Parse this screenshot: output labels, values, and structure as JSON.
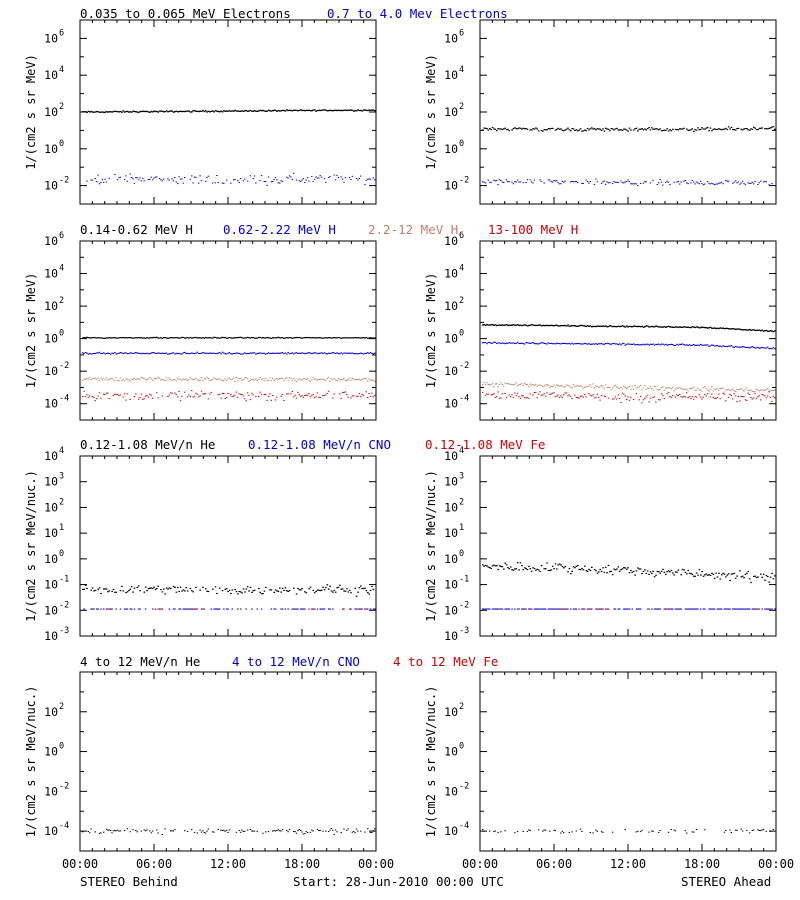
{
  "header_rows": [
    {
      "labels": [
        {
          "text": "0.035 to 0.065 MeV Electrons",
          "color": "#000000"
        },
        {
          "text": "0.7 to 4.0 Mev Electrons",
          "color": "#0000cc"
        }
      ]
    },
    {
      "labels": [
        {
          "text": "0.14-0.62 MeV H",
          "color": "#000000"
        },
        {
          "text": "0.62-2.22 MeV H",
          "color": "#0000cc"
        },
        {
          "text": "2.2-12 MeV H",
          "color": "#c0806a"
        },
        {
          "text": "13-100 MeV H",
          "color": "#cc0000"
        }
      ]
    },
    {
      "labels": [
        {
          "text": "0.12-1.08 MeV/n He",
          "color": "#000000"
        },
        {
          "text": "0.12-1.08 MeV/n CNO",
          "color": "#0000cc"
        },
        {
          "text": "0.12-1.08 MeV Fe",
          "color": "#cc0000"
        }
      ]
    },
    {
      "labels": [
        {
          "text": "4 to 12 MeV/n He",
          "color": "#000000"
        },
        {
          "text": "4 to 12 MeV/n CNO",
          "color": "#0000cc"
        },
        {
          "text": "4 to 12 MeV Fe",
          "color": "#cc0000"
        }
      ]
    }
  ],
  "footer": {
    "left": "STEREO Behind",
    "center": "Start: 28-Jun-2010 00:00 UTC",
    "right": "STEREO Ahead"
  },
  "x_tick_labels": [
    "00:00",
    "06:00",
    "12:00",
    "18:00",
    "00:00"
  ],
  "chart_data": [
    {
      "type": "scatter",
      "panel": "electrons-behind",
      "ylabel": "1/(cm2 s sr MeV)",
      "yscale": "log",
      "ylim_log10": [
        -3,
        7
      ],
      "x": [
        "00:00",
        "06:00",
        "12:00",
        "18:00",
        "24:00"
      ],
      "ytick_exponents": [
        -2,
        0,
        2,
        4,
        6
      ],
      "series": [
        {
          "name": "0.035 to 0.065 MeV Electrons",
          "color": "#000000",
          "log10_values": [
            2.0,
            2.02,
            2.05,
            2.08,
            2.1
          ],
          "scatter": 0.03,
          "density": 1.0,
          "size": 1.3
        },
        {
          "name": "0.7 to 4.0 Mev Electrons",
          "color": "#0000cc",
          "log10_values": [
            -1.65,
            -1.65,
            -1.65,
            -1.65,
            -1.65
          ],
          "scatter": 0.22,
          "density": 0.75,
          "size": 1.0
        }
      ]
    },
    {
      "type": "scatter",
      "panel": "electrons-ahead",
      "ylabel": "1/(cm2 s sr MeV)",
      "yscale": "log",
      "ylim_log10": [
        -3,
        7
      ],
      "x": [
        "00:00",
        "06:00",
        "12:00",
        "18:00",
        "24:00"
      ],
      "ytick_exponents": [
        -2,
        0,
        2,
        4,
        6
      ],
      "series": [
        {
          "name": "0.035 to 0.065 MeV Electrons",
          "color": "#000000",
          "log10_values": [
            1.1,
            1.05,
            1.05,
            1.05,
            1.1
          ],
          "scatter": 0.08,
          "density": 0.95,
          "size": 1.2
        },
        {
          "name": "0.7 to 4.0 Mev Electrons",
          "color": "#0000cc",
          "log10_values": [
            -1.8,
            -1.8,
            -1.85,
            -1.85,
            -1.85
          ],
          "scatter": 0.13,
          "density": 0.8,
          "size": 1.0
        }
      ]
    },
    {
      "type": "scatter",
      "panel": "protons-behind",
      "ylabel": "1/(cm2 s sr MeV)",
      "yscale": "log",
      "ylim_log10": [
        -5,
        6
      ],
      "x": [
        "00:00",
        "06:00",
        "12:00",
        "18:00",
        "24:00"
      ],
      "ytick_exponents": [
        -4,
        -2,
        0,
        2,
        4,
        6
      ],
      "series": [
        {
          "name": "0.14-0.62 MeV H",
          "color": "#000000",
          "log10_values": [
            0.05,
            0.05,
            0.05,
            0.05,
            0.05
          ],
          "scatter": 0.025,
          "density": 1.0,
          "size": 1.2
        },
        {
          "name": "0.62-2.22 MeV H",
          "color": "#0000cc",
          "log10_values": [
            -0.9,
            -0.9,
            -0.9,
            -0.9,
            -0.9
          ],
          "scatter": 0.04,
          "density": 1.0,
          "size": 1.1
        },
        {
          "name": "2.2-12 MeV H",
          "color": "#c0806a",
          "log10_values": [
            -2.5,
            -2.5,
            -2.5,
            -2.5,
            -2.5
          ],
          "scatter": 0.1,
          "density": 1.0,
          "size": 1.0
        },
        {
          "name": "13-100 MeV H",
          "color": "#cc0000",
          "log10_values": [
            -3.5,
            -3.5,
            -3.5,
            -3.5,
            -3.5
          ],
          "scatter": 0.22,
          "density": 0.8,
          "size": 1.0
        }
      ]
    },
    {
      "type": "scatter",
      "panel": "protons-ahead",
      "ylabel": "1/(cm2 s sr MeV)",
      "yscale": "log",
      "ylim_log10": [
        -5,
        6
      ],
      "x": [
        "00:00",
        "06:00",
        "12:00",
        "18:00",
        "24:00"
      ],
      "ytick_exponents": [
        -4,
        -2,
        0,
        2,
        4,
        6
      ],
      "series": [
        {
          "name": "0.14-0.62 MeV H",
          "color": "#000000",
          "log10_values": [
            0.85,
            0.8,
            0.75,
            0.7,
            0.45
          ],
          "scatter": 0.03,
          "density": 1.0,
          "size": 1.3
        },
        {
          "name": "0.62-2.22 MeV H",
          "color": "#0000cc",
          "log10_values": [
            -0.25,
            -0.3,
            -0.35,
            -0.4,
            -0.6
          ],
          "scatter": 0.04,
          "density": 1.0,
          "size": 1.1
        },
        {
          "name": "2.2-12 MeV H",
          "color": "#c0806a",
          "log10_values": [
            -2.8,
            -2.9,
            -3.0,
            -3.1,
            -3.2
          ],
          "scatter": 0.12,
          "density": 1.0,
          "size": 1.0
        },
        {
          "name": "13-100 MeV H",
          "color": "#cc0000",
          "log10_values": [
            -3.5,
            -3.5,
            -3.6,
            -3.6,
            -3.6
          ],
          "scatter": 0.22,
          "density": 0.85,
          "size": 1.0
        }
      ]
    },
    {
      "type": "scatter",
      "panel": "heavy-low-behind",
      "ylabel": "1/(cm2 s sr MeV/nuc.)",
      "yscale": "log",
      "ylim_log10": [
        -3,
        4
      ],
      "x": [
        "00:00",
        "06:00",
        "12:00",
        "18:00",
        "24:00"
      ],
      "ytick_exponents": [
        -3,
        -2,
        -1,
        0,
        1,
        2,
        3,
        4
      ],
      "series": [
        {
          "name": "0.12-1.08 MeV/n He",
          "color": "#000000",
          "log10_values": [
            -1.2,
            -1.2,
            -1.2,
            -1.2,
            -1.2
          ],
          "scatter": 0.15,
          "density": 0.75,
          "size": 1.2
        },
        {
          "name": "0.12-1.08 MeV/n CNO",
          "color": "#0000cc",
          "log10_values": [
            -1.95,
            -1.95,
            -1.95,
            -1.95,
            -1.95
          ],
          "scatter": 0.0,
          "density": 0.5,
          "size": 1.1
        },
        {
          "name": "0.12-1.08 MeV Fe",
          "color": "#cc0000",
          "log10_values": [
            -1.95,
            -1.95,
            -1.95,
            -1.95,
            -1.95
          ],
          "scatter": 0.0,
          "density": 0.1,
          "size": 1.1
        }
      ]
    },
    {
      "type": "scatter",
      "panel": "heavy-low-ahead",
      "ylabel": "1/(cm2 s sr MeV/nuc.)",
      "yscale": "log",
      "ylim_log10": [
        -3,
        4
      ],
      "x": [
        "00:00",
        "06:00",
        "12:00",
        "18:00",
        "24:00"
      ],
      "ytick_exponents": [
        -3,
        -2,
        -1,
        0,
        1,
        2,
        3,
        4
      ],
      "series": [
        {
          "name": "0.12-1.08 MeV/n He",
          "color": "#000000",
          "log10_values": [
            -0.3,
            -0.35,
            -0.45,
            -0.6,
            -0.75
          ],
          "scatter": 0.15,
          "density": 0.95,
          "size": 1.2
        },
        {
          "name": "0.12-1.08 MeV/n CNO",
          "color": "#0000cc",
          "log10_values": [
            -1.95,
            -1.95,
            -1.95,
            -1.95,
            -1.95
          ],
          "scatter": 0.0,
          "density": 0.7,
          "size": 1.1
        },
        {
          "name": "0.12-1.08 MeV Fe",
          "color": "#cc0000",
          "log10_values": [
            -1.95,
            -1.95,
            -1.95,
            -1.95,
            -1.95
          ],
          "scatter": 0.0,
          "density": 0.08,
          "size": 1.1
        }
      ]
    },
    {
      "type": "scatter",
      "panel": "heavy-high-behind",
      "ylabel": "1/(cm2 s sr MeV/nuc.)",
      "yscale": "log",
      "ylim_log10": [
        -5,
        4
      ],
      "x": [
        "00:00",
        "06:00",
        "12:00",
        "18:00",
        "24:00"
      ],
      "ytick_exponents": [
        -4,
        -2,
        0,
        2
      ],
      "series": [
        {
          "name": "4 to 12 MeV/n He",
          "color": "#000000",
          "log10_values": [
            -4.0,
            -4.0,
            -4.0,
            -4.0,
            -4.0
          ],
          "scatter": 0.1,
          "density": 0.6,
          "size": 1.0
        },
        {
          "name": "4 to 12 MeV/n CNO",
          "color": "#0000cc",
          "log10_values": [
            -5.0,
            -5.0,
            -5.0,
            -5.0,
            -5.0
          ],
          "scatter": 0.0,
          "density": 0.01,
          "size": 1.0
        }
      ]
    },
    {
      "type": "scatter",
      "panel": "heavy-high-ahead",
      "ylabel": "1/(cm2 s sr MeV/nuc.)",
      "yscale": "log",
      "ylim_log10": [
        -5,
        4
      ],
      "x": [
        "00:00",
        "06:00",
        "12:00",
        "18:00",
        "24:00"
      ],
      "ytick_exponents": [
        -4,
        -2,
        0,
        2
      ],
      "series": [
        {
          "name": "4 to 12 MeV/n He",
          "color": "#000000",
          "log10_values": [
            -4.0,
            -4.0,
            -4.0,
            -4.0,
            -4.0
          ],
          "scatter": 0.08,
          "density": 0.3,
          "size": 1.0
        }
      ]
    }
  ]
}
